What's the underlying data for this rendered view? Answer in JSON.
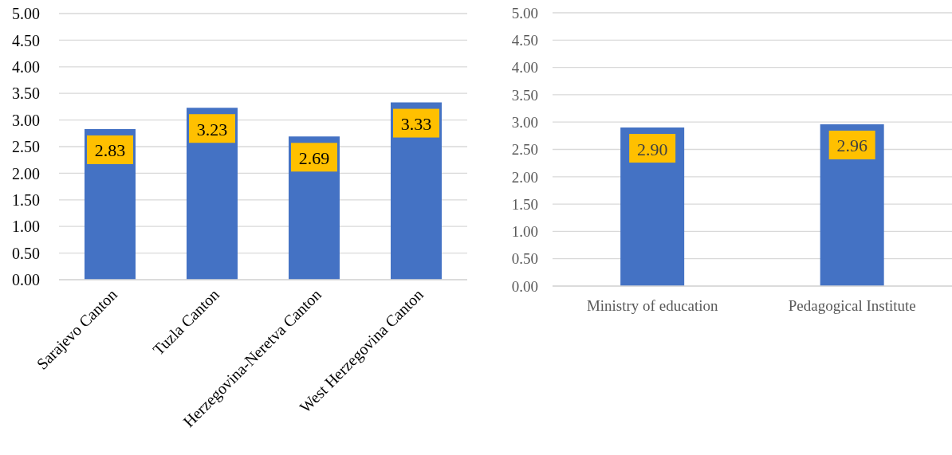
{
  "chart_data": [
    {
      "type": "bar",
      "categories": [
        "Sarajevo Canton",
        "Tuzla Canton",
        "Herzegovina-Neretva Canton",
        "West Herzegovina Canton"
      ],
      "values": [
        2.83,
        3.23,
        2.69,
        3.33
      ],
      "color": "#4472c4",
      "ylim": [
        0,
        5
      ],
      "yticks": [
        {
          "value": 0,
          "label": "0.00"
        },
        {
          "value": 0.5,
          "label": "0.50"
        },
        {
          "value": 1,
          "label": "1.00"
        },
        {
          "value": 1.5,
          "label": "1.50"
        },
        {
          "value": 2,
          "label": "2.00"
        },
        {
          "value": 2.5,
          "label": "2.50"
        },
        {
          "value": 3,
          "label": "3.00"
        },
        {
          "value": 3.5,
          "label": "3.50"
        },
        {
          "value": 4,
          "label": "4.00"
        },
        {
          "value": 4.5,
          "label": "4.50"
        },
        {
          "value": 5,
          "label": "5.00"
        }
      ],
      "grid": "y",
      "data_labels": true
    },
    {
      "type": "bar",
      "categories": [
        "Ministry of education",
        "Pedagogical Institute"
      ],
      "values": [
        2.9,
        2.96
      ],
      "value_labels": [
        "2.90",
        "2.96"
      ],
      "color": "#4472c4",
      "ylim": [
        0,
        5
      ],
      "yticks": [
        {
          "value": 0,
          "label": "0.00"
        },
        {
          "value": 0.5,
          "label": "0.50"
        },
        {
          "value": 1,
          "label": "1.00"
        },
        {
          "value": 1.5,
          "label": "1.50"
        },
        {
          "value": 2,
          "label": "2.00"
        },
        {
          "value": 2.5,
          "label": "2.50"
        },
        {
          "value": 3,
          "label": "3.00"
        },
        {
          "value": 3.5,
          "label": "3.50"
        },
        {
          "value": 4,
          "label": "4.00"
        },
        {
          "value": 4.5,
          "label": "4.50"
        },
        {
          "value": 5,
          "label": "5.00"
        }
      ],
      "grid": "y"
    }
  ]
}
